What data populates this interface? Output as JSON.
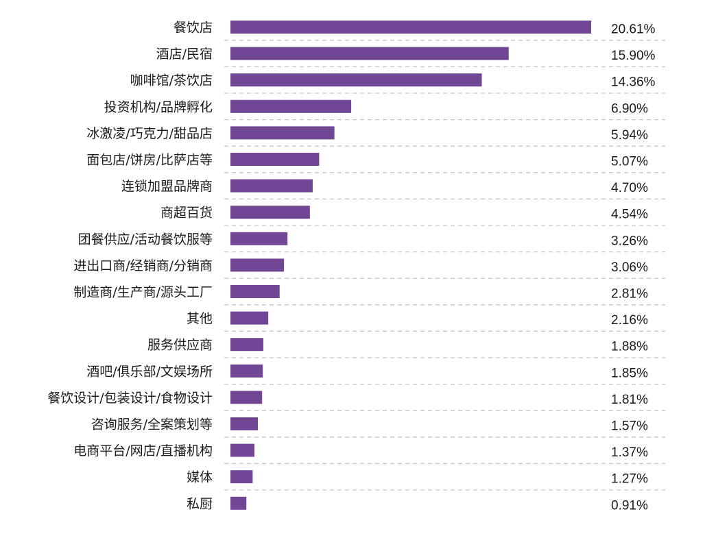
{
  "chart_data": {
    "type": "bar",
    "orientation": "horizontal",
    "title": "",
    "xlabel": "",
    "ylabel": "",
    "xlim": [
      0,
      20.61
    ],
    "grid": "dashed separators between rows",
    "bar_color": "#714694",
    "categories": [
      "餐饮店",
      "酒店/民宿",
      "咖啡馆/茶饮店",
      "投资机构/品牌孵化",
      "冰激凌/巧克力/甜品店",
      "面包店/饼房/比萨店等",
      "连锁加盟品牌商",
      "商超百货",
      "团餐供应/活动餐饮服等",
      "进出口商/经销商/分销商",
      "制造商/生产商/源头工厂",
      "其他",
      "服务供应商",
      "酒吧/俱乐部/文娱场所",
      "餐饮设计/包装设计/食物设计",
      "咨询服务/全案策划等",
      "电商平台/网店/直播机构",
      "媒体",
      "私厨"
    ],
    "values": [
      20.61,
      15.9,
      14.36,
      6.9,
      5.94,
      5.07,
      4.7,
      4.54,
      3.26,
      3.06,
      2.81,
      2.16,
      1.88,
      1.85,
      1.81,
      1.57,
      1.37,
      1.27,
      0.91
    ],
    "value_labels": [
      "20.61%",
      "15.90%",
      "14.36%",
      "6.90%",
      "5.94%",
      "5.07%",
      "4.70%",
      "4.54%",
      "3.26%",
      "3.06%",
      "2.81%",
      "2.16%",
      "1.88%",
      "1.85%",
      "1.81%",
      "1.57%",
      "1.37%",
      "1.27%",
      "0.91%"
    ]
  }
}
